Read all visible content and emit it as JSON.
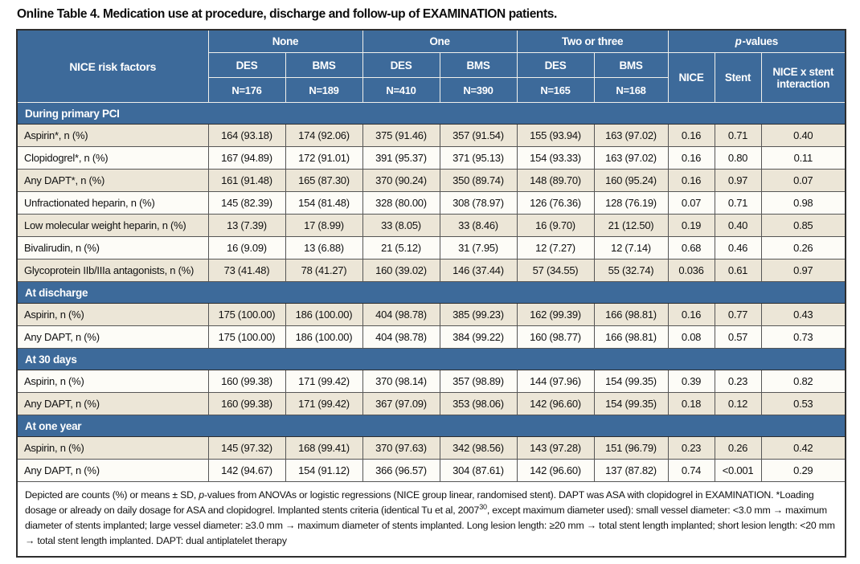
{
  "title": "Online Table 4. Medication use at procedure, discharge and follow-up of EXAMINATION patients.",
  "colors": {
    "header_blue": "#3d6a9a",
    "row_beige": "#ece6d7",
    "row_white": "#fdfcf7",
    "grid_line": "#565656",
    "outer_border": "#2e2e2e",
    "header_text": "#ffffff",
    "body_text": "#101010"
  },
  "header": {
    "row_label": "NICE risk factors",
    "groups": [
      {
        "label": "None",
        "cols": [
          {
            "stent": "DES",
            "n": "N=176"
          },
          {
            "stent": "BMS",
            "n": "N=189"
          }
        ]
      },
      {
        "label": "One",
        "cols": [
          {
            "stent": "DES",
            "n": "N=410"
          },
          {
            "stent": "BMS",
            "n": "N=390"
          }
        ]
      },
      {
        "label": "Two or three",
        "cols": [
          {
            "stent": "DES",
            "n": "N=165"
          },
          {
            "stent": "BMS",
            "n": "N=168"
          }
        ]
      }
    ],
    "p_group": {
      "label_italic": "p",
      "label_rest": "-values",
      "cols": [
        "NICE",
        "Stent",
        "NICE x stent interaction"
      ]
    }
  },
  "sections": [
    {
      "label": "During primary PCI",
      "rows": [
        {
          "label": "Aspirin*, n (%)",
          "shade": "beige",
          "values": [
            "164 (93.18)",
            "174 (92.06)",
            "375 (91.46)",
            "357 (91.54)",
            "155 (93.94)",
            "163 (97.02)",
            "0.16",
            "0.71",
            "0.40"
          ]
        },
        {
          "label": "Clopidogrel*, n (%)",
          "shade": "white",
          "values": [
            "167 (94.89)",
            "172 (91.01)",
            "391 (95.37)",
            "371 (95.13)",
            "154 (93.33)",
            "163 (97.02)",
            "0.16",
            "0.80",
            "0.11"
          ]
        },
        {
          "label": "Any DAPT*, n (%)",
          "shade": "beige",
          "values": [
            "161 (91.48)",
            "165 (87.30)",
            "370 (90.24)",
            "350 (89.74)",
            "148 (89.70)",
            "160 (95.24)",
            "0.16",
            "0.97",
            "0.07"
          ]
        },
        {
          "label": "Unfractionated heparin, n (%)",
          "shade": "white",
          "values": [
            "145 (82.39)",
            "154 (81.48)",
            "328 (80.00)",
            "308 (78.97)",
            "126 (76.36)",
            "128 (76.19)",
            "0.07",
            "0.71",
            "0.98"
          ]
        },
        {
          "label": "Low molecular weight heparin, n (%)",
          "shade": "beige",
          "values": [
            "13 (7.39)",
            "17 (8.99)",
            "33 (8.05)",
            "33 (8.46)",
            "16 (9.70)",
            "21 (12.50)",
            "0.19",
            "0.40",
            "0.85"
          ]
        },
        {
          "label": "Bivalirudin, n (%)",
          "shade": "white",
          "values": [
            "16 (9.09)",
            "13 (6.88)",
            "21 (5.12)",
            "31 (7.95)",
            "12 (7.27)",
            "12 (7.14)",
            "0.68",
            "0.46",
            "0.26"
          ]
        },
        {
          "label": "Glycoprotein IIb/IIIa antagonists, n (%)",
          "shade": "beige",
          "values": [
            "73 (41.48)",
            "78 (41.27)",
            "160 (39.02)",
            "146 (37.44)",
            "57 (34.55)",
            "55 (32.74)",
            "0.036",
            "0.61",
            "0.97"
          ]
        }
      ]
    },
    {
      "label": "At discharge",
      "rows": [
        {
          "label": "Aspirin, n (%)",
          "shade": "beige",
          "values": [
            "175 (100.00)",
            "186 (100.00)",
            "404 (98.78)",
            "385 (99.23)",
            "162 (99.39)",
            "166 (98.81)",
            "0.16",
            "0.77",
            "0.43"
          ]
        },
        {
          "label": "Any DAPT, n (%)",
          "shade": "white",
          "values": [
            "175 (100.00)",
            "186 (100.00)",
            "404 (98.78)",
            "384 (99.22)",
            "160 (98.77)",
            "166 (98.81)",
            "0.08",
            "0.57",
            "0.73"
          ]
        }
      ]
    },
    {
      "label": "At 30 days",
      "rows": [
        {
          "label": "Aspirin, n (%)",
          "shade": "white",
          "values": [
            "160 (99.38)",
            "171 (99.42)",
            "370 (98.14)",
            "357 (98.89)",
            "144 (97.96)",
            "154 (99.35)",
            "0.39",
            "0.23",
            "0.82"
          ]
        },
        {
          "label": "Any DAPT, n (%)",
          "shade": "beige",
          "values": [
            "160 (99.38)",
            "171 (99.42)",
            "367 (97.09)",
            "353 (98.06)",
            "142 (96.60)",
            "154 (99.35)",
            "0.18",
            "0.12",
            "0.53"
          ]
        }
      ]
    },
    {
      "label": "At one year",
      "rows": [
        {
          "label": "Aspirin, n (%)",
          "shade": "beige",
          "values": [
            "145 (97.32)",
            "168 (99.41)",
            "370 (97.63)",
            "342 (98.56)",
            "143 (97.28)",
            "151 (96.79)",
            "0.23",
            "0.26",
            "0.42"
          ]
        },
        {
          "label": "Any DAPT, n (%)",
          "shade": "white",
          "values": [
            "142 (94.67)",
            "154 (91.12)",
            "366 (96.57)",
            "304 (87.61)",
            "142 (96.60)",
            "137 (87.82)",
            "0.74",
            "<0.001",
            "0.29"
          ]
        }
      ]
    }
  ],
  "footnote": {
    "pre": "Depicted are counts (%) or means ± SD, ",
    "p_italic": "p",
    "mid": "-values from ANOVAs or logistic regressions (NICE group linear, randomised stent). DAPT was ASA with clopidogrel in EXAMINATION. *Loading dosage or already on daily dosage for ASA and clopidogrel. Implanted stents criteria (identical Tu et al, 2007",
    "sup": "30",
    "post": ", except maximum diameter used): small vessel diameter: <3.0 mm → maximum diameter of stents implanted; large vessel diameter: ≥3.0 mm → maximum diameter of stents implanted. Long lesion length: ≥20 mm → total stent length implanted; short lesion length: <20 mm → total stent length implanted. DAPT: dual antiplatelet therapy"
  }
}
